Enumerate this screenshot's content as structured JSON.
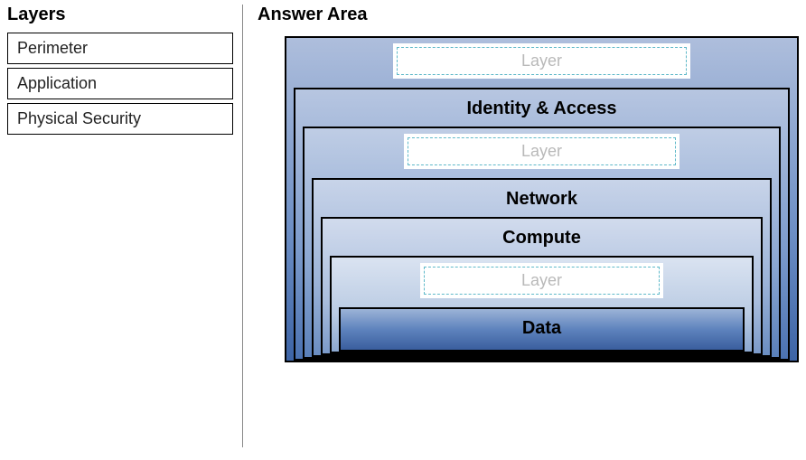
{
  "left": {
    "heading": "Layers",
    "items": [
      "Perimeter",
      "Application",
      "Physical Security"
    ]
  },
  "right": {
    "heading": "Answer Area",
    "dropzone_placeholder": "Layer",
    "layers": [
      {
        "type": "dropzone"
      },
      {
        "type": "fixed",
        "label": "Identity & Access"
      },
      {
        "type": "dropzone"
      },
      {
        "type": "fixed",
        "label": "Network"
      },
      {
        "type": "fixed",
        "label": "Compute"
      },
      {
        "type": "dropzone"
      },
      {
        "type": "fixed",
        "label": "Data"
      }
    ]
  },
  "style": {
    "heading_fontsize": 20,
    "item_fontsize": 18,
    "label_fontsize": 20,
    "dropzone_border_color": "#5fb9c9",
    "dropzone_text_color": "#b9b9b9",
    "nest_border_color": "#000000",
    "gradients": [
      [
        "#aebedc",
        "#6d8fc5",
        "#3d64a6"
      ],
      [
        "#b7c6e1",
        "#7b9acb",
        "#4b72b2"
      ],
      [
        "#bfcde5",
        "#8aa6d1",
        "#5a80ba"
      ],
      [
        "#c8d4e9",
        "#9ab2d7",
        "#6a8dc1"
      ],
      [
        "#d1dbed",
        "#aabedd",
        "#7b9ac9"
      ],
      [
        "#dae3f1",
        "#bacbe3",
        "#8ca8d0"
      ],
      [
        "#9cb3d7",
        "#5e83bd",
        "#3a5e9e"
      ]
    ]
  }
}
